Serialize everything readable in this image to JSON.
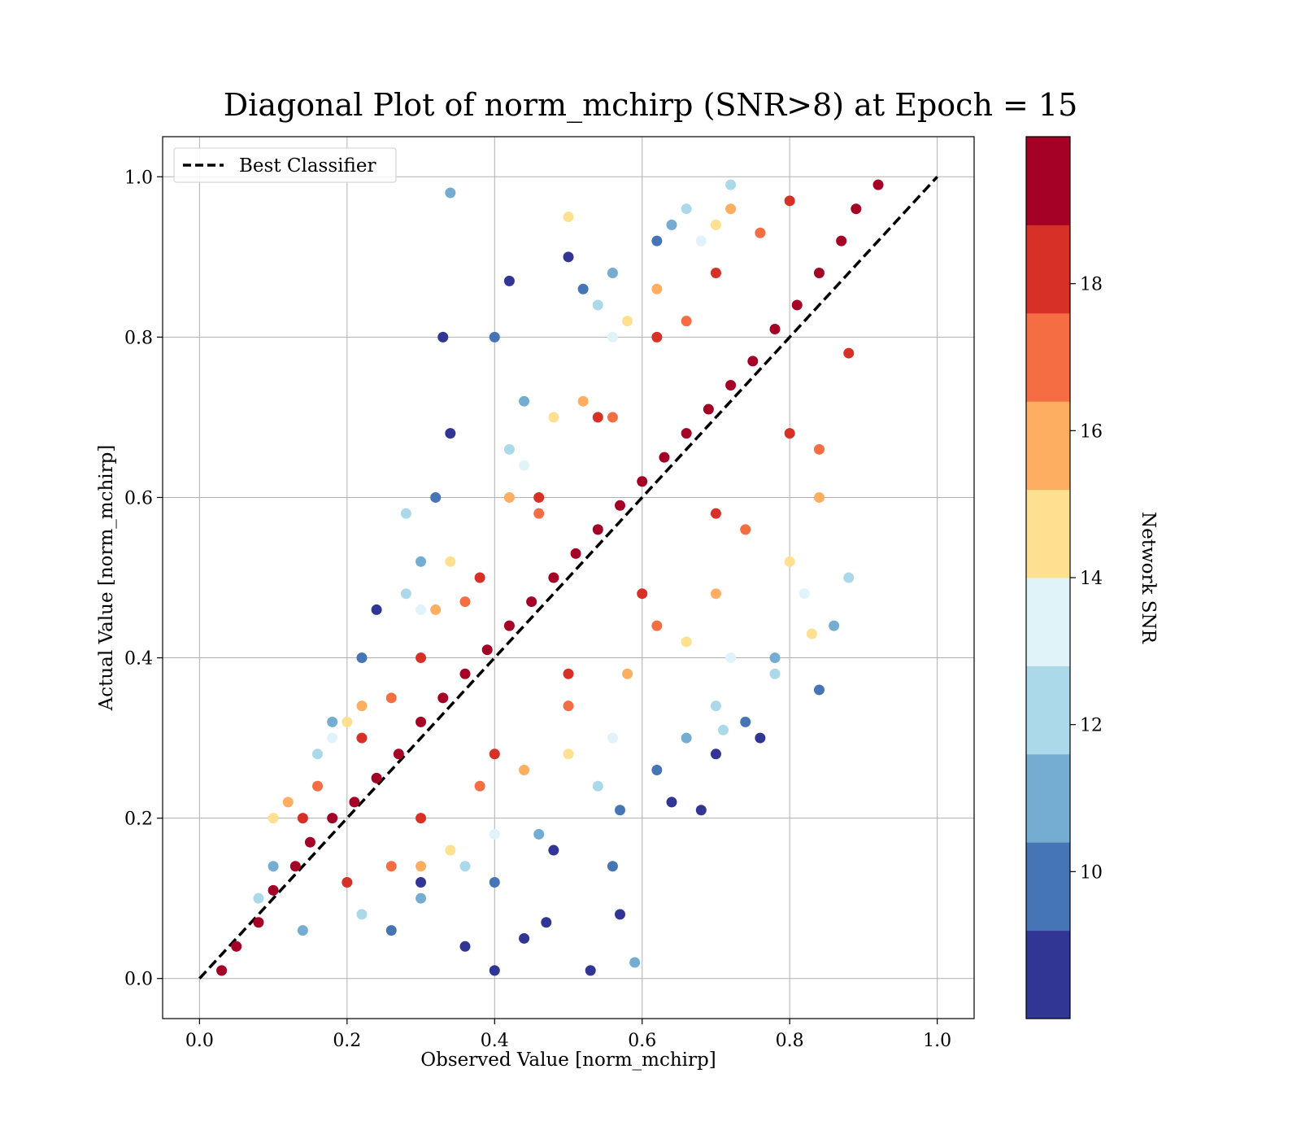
{
  "chart_data": {
    "type": "scatter",
    "title": "Diagonal Plot of norm_mchirp (SNR>8) at Epoch = 15",
    "xlabel": "Observed Value [norm_mchirp]",
    "ylabel": "Actual Value [norm_mchirp]",
    "xlim": [
      -0.05,
      1.05
    ],
    "ylim": [
      -0.05,
      1.05
    ],
    "xticks": [
      "0.0",
      "0.2",
      "0.4",
      "0.6",
      "0.8",
      "1.0"
    ],
    "yticks": [
      "0.0",
      "0.2",
      "0.4",
      "0.6",
      "0.8",
      "1.0"
    ],
    "grid": true,
    "legend": {
      "position": "top-left",
      "entries": [
        "Best Classifier"
      ]
    },
    "reference_line": {
      "name": "Best Classifier",
      "style": "dashed",
      "color": "#000000",
      "x": [
        0.0,
        1.0
      ],
      "y": [
        0.0,
        1.0
      ]
    },
    "colorbar": {
      "label": "Network SNR",
      "range": [
        8,
        20
      ],
      "ticks": [
        "10",
        "12",
        "14",
        "16",
        "18"
      ],
      "bins": [
        {
          "from": 8,
          "to": 9.2,
          "color": "#313695"
        },
        {
          "from": 9.2,
          "to": 10.4,
          "color": "#4575b4"
        },
        {
          "from": 10.4,
          "to": 11.6,
          "color": "#74add1"
        },
        {
          "from": 11.6,
          "to": 12.8,
          "color": "#abd9e9"
        },
        {
          "from": 12.8,
          "to": 14.0,
          "color": "#e0f3f8"
        },
        {
          "from": 14.0,
          "to": 15.2,
          "color": "#fee090"
        },
        {
          "from": 15.2,
          "to": 16.4,
          "color": "#fdae61"
        },
        {
          "from": 16.4,
          "to": 17.6,
          "color": "#f46d43"
        },
        {
          "from": 17.6,
          "to": 18.8,
          "color": "#d73027"
        },
        {
          "from": 18.8,
          "to": 20.0,
          "color": "#a50026"
        }
      ]
    },
    "points": [
      {
        "x": 0.03,
        "y": 0.01,
        "snr": 19.5
      },
      {
        "x": 0.05,
        "y": 0.04,
        "snr": 19.6
      },
      {
        "x": 0.08,
        "y": 0.07,
        "snr": 19.4
      },
      {
        "x": 0.1,
        "y": 0.11,
        "snr": 19.7
      },
      {
        "x": 0.13,
        "y": 0.14,
        "snr": 19.5
      },
      {
        "x": 0.15,
        "y": 0.17,
        "snr": 19.8
      },
      {
        "x": 0.18,
        "y": 0.2,
        "snr": 19.6
      },
      {
        "x": 0.21,
        "y": 0.22,
        "snr": 19.5
      },
      {
        "x": 0.24,
        "y": 0.25,
        "snr": 19.7
      },
      {
        "x": 0.27,
        "y": 0.28,
        "snr": 19.4
      },
      {
        "x": 0.3,
        "y": 0.32,
        "snr": 19.6
      },
      {
        "x": 0.33,
        "y": 0.35,
        "snr": 19.8
      },
      {
        "x": 0.36,
        "y": 0.38,
        "snr": 19.5
      },
      {
        "x": 0.39,
        "y": 0.41,
        "snr": 19.7
      },
      {
        "x": 0.42,
        "y": 0.44,
        "snr": 19.6
      },
      {
        "x": 0.45,
        "y": 0.47,
        "snr": 19.5
      },
      {
        "x": 0.48,
        "y": 0.5,
        "snr": 19.8
      },
      {
        "x": 0.51,
        "y": 0.53,
        "snr": 19.4
      },
      {
        "x": 0.54,
        "y": 0.56,
        "snr": 19.6
      },
      {
        "x": 0.57,
        "y": 0.59,
        "snr": 19.7
      },
      {
        "x": 0.6,
        "y": 0.62,
        "snr": 19.5
      },
      {
        "x": 0.63,
        "y": 0.65,
        "snr": 19.6
      },
      {
        "x": 0.66,
        "y": 0.68,
        "snr": 19.8
      },
      {
        "x": 0.69,
        "y": 0.71,
        "snr": 19.5
      },
      {
        "x": 0.72,
        "y": 0.74,
        "snr": 19.7
      },
      {
        "x": 0.75,
        "y": 0.77,
        "snr": 19.4
      },
      {
        "x": 0.78,
        "y": 0.81,
        "snr": 19.6
      },
      {
        "x": 0.81,
        "y": 0.84,
        "snr": 19.5
      },
      {
        "x": 0.84,
        "y": 0.88,
        "snr": 19.7
      },
      {
        "x": 0.87,
        "y": 0.92,
        "snr": 19.6
      },
      {
        "x": 0.89,
        "y": 0.96,
        "snr": 19.5
      },
      {
        "x": 0.92,
        "y": 0.99,
        "snr": 19.8
      },
      {
        "x": 0.14,
        "y": 0.2,
        "snr": 18.2
      },
      {
        "x": 0.22,
        "y": 0.3,
        "snr": 18.0
      },
      {
        "x": 0.3,
        "y": 0.4,
        "snr": 17.9
      },
      {
        "x": 0.38,
        "y": 0.5,
        "snr": 18.3
      },
      {
        "x": 0.46,
        "y": 0.6,
        "snr": 18.1
      },
      {
        "x": 0.54,
        "y": 0.7,
        "snr": 18.4
      },
      {
        "x": 0.62,
        "y": 0.8,
        "snr": 18.0
      },
      {
        "x": 0.7,
        "y": 0.88,
        "snr": 18.2
      },
      {
        "x": 0.8,
        "y": 0.97,
        "snr": 17.8
      },
      {
        "x": 0.2,
        "y": 0.12,
        "snr": 18.1
      },
      {
        "x": 0.3,
        "y": 0.2,
        "snr": 18.3
      },
      {
        "x": 0.4,
        "y": 0.28,
        "snr": 17.9
      },
      {
        "x": 0.5,
        "y": 0.38,
        "snr": 18.2
      },
      {
        "x": 0.6,
        "y": 0.48,
        "snr": 18.0
      },
      {
        "x": 0.7,
        "y": 0.58,
        "snr": 18.4
      },
      {
        "x": 0.8,
        "y": 0.68,
        "snr": 18.1
      },
      {
        "x": 0.88,
        "y": 0.78,
        "snr": 17.9
      },
      {
        "x": 0.16,
        "y": 0.24,
        "snr": 16.9
      },
      {
        "x": 0.26,
        "y": 0.35,
        "snr": 16.7
      },
      {
        "x": 0.36,
        "y": 0.47,
        "snr": 17.0
      },
      {
        "x": 0.46,
        "y": 0.58,
        "snr": 16.8
      },
      {
        "x": 0.56,
        "y": 0.7,
        "snr": 16.6
      },
      {
        "x": 0.66,
        "y": 0.82,
        "snr": 17.1
      },
      {
        "x": 0.76,
        "y": 0.93,
        "snr": 16.9
      },
      {
        "x": 0.26,
        "y": 0.14,
        "snr": 16.8
      },
      {
        "x": 0.38,
        "y": 0.24,
        "snr": 17.0
      },
      {
        "x": 0.5,
        "y": 0.34,
        "snr": 16.7
      },
      {
        "x": 0.62,
        "y": 0.44,
        "snr": 16.9
      },
      {
        "x": 0.74,
        "y": 0.56,
        "snr": 17.1
      },
      {
        "x": 0.84,
        "y": 0.66,
        "snr": 16.8
      },
      {
        "x": 0.12,
        "y": 0.22,
        "snr": 15.8
      },
      {
        "x": 0.22,
        "y": 0.34,
        "snr": 15.6
      },
      {
        "x": 0.32,
        "y": 0.46,
        "snr": 15.9
      },
      {
        "x": 0.42,
        "y": 0.6,
        "snr": 15.7
      },
      {
        "x": 0.52,
        "y": 0.72,
        "snr": 15.5
      },
      {
        "x": 0.62,
        "y": 0.86,
        "snr": 15.8
      },
      {
        "x": 0.72,
        "y": 0.96,
        "snr": 15.6
      },
      {
        "x": 0.3,
        "y": 0.14,
        "snr": 15.7
      },
      {
        "x": 0.44,
        "y": 0.26,
        "snr": 15.9
      },
      {
        "x": 0.58,
        "y": 0.38,
        "snr": 15.6
      },
      {
        "x": 0.7,
        "y": 0.48,
        "snr": 15.8
      },
      {
        "x": 0.84,
        "y": 0.6,
        "snr": 15.5
      },
      {
        "x": 0.1,
        "y": 0.2,
        "snr": 14.6
      },
      {
        "x": 0.2,
        "y": 0.32,
        "snr": 14.8
      },
      {
        "x": 0.34,
        "y": 0.52,
        "snr": 14.5
      },
      {
        "x": 0.48,
        "y": 0.7,
        "snr": 14.7
      },
      {
        "x": 0.58,
        "y": 0.82,
        "snr": 14.9
      },
      {
        "x": 0.7,
        "y": 0.94,
        "snr": 14.6
      },
      {
        "x": 0.5,
        "y": 0.95,
        "snr": 14.5
      },
      {
        "x": 0.34,
        "y": 0.16,
        "snr": 14.8
      },
      {
        "x": 0.5,
        "y": 0.28,
        "snr": 14.6
      },
      {
        "x": 0.66,
        "y": 0.42,
        "snr": 14.7
      },
      {
        "x": 0.8,
        "y": 0.52,
        "snr": 14.9
      },
      {
        "x": 0.83,
        "y": 0.43,
        "snr": 14.5
      },
      {
        "x": 0.18,
        "y": 0.3,
        "snr": 13.4
      },
      {
        "x": 0.3,
        "y": 0.46,
        "snr": 13.6
      },
      {
        "x": 0.44,
        "y": 0.64,
        "snr": 13.3
      },
      {
        "x": 0.56,
        "y": 0.8,
        "snr": 13.5
      },
      {
        "x": 0.68,
        "y": 0.92,
        "snr": 13.7
      },
      {
        "x": 0.4,
        "y": 0.18,
        "snr": 13.4
      },
      {
        "x": 0.56,
        "y": 0.3,
        "snr": 13.6
      },
      {
        "x": 0.72,
        "y": 0.4,
        "snr": 13.3
      },
      {
        "x": 0.82,
        "y": 0.48,
        "snr": 13.5
      },
      {
        "x": 0.08,
        "y": 0.1,
        "snr": 12.3
      },
      {
        "x": 0.16,
        "y": 0.28,
        "snr": 12.1
      },
      {
        "x": 0.28,
        "y": 0.48,
        "snr": 12.4
      },
      {
        "x": 0.42,
        "y": 0.66,
        "snr": 12.2
      },
      {
        "x": 0.54,
        "y": 0.84,
        "snr": 12.0
      },
      {
        "x": 0.66,
        "y": 0.96,
        "snr": 12.3
      },
      {
        "x": 0.72,
        "y": 0.99,
        "snr": 12.2
      },
      {
        "x": 0.28,
        "y": 0.58,
        "snr": 12.1
      },
      {
        "x": 0.22,
        "y": 0.08,
        "snr": 12.2
      },
      {
        "x": 0.36,
        "y": 0.14,
        "snr": 12.4
      },
      {
        "x": 0.54,
        "y": 0.24,
        "snr": 12.1
      },
      {
        "x": 0.7,
        "y": 0.34,
        "snr": 12.3
      },
      {
        "x": 0.78,
        "y": 0.38,
        "snr": 12.0
      },
      {
        "x": 0.88,
        "y": 0.5,
        "snr": 12.2
      },
      {
        "x": 0.71,
        "y": 0.31,
        "snr": 12.4
      },
      {
        "x": 0.1,
        "y": 0.14,
        "snr": 11.0
      },
      {
        "x": 0.18,
        "y": 0.32,
        "snr": 11.2
      },
      {
        "x": 0.3,
        "y": 0.52,
        "snr": 10.9
      },
      {
        "x": 0.34,
        "y": 0.98,
        "snr": 11.1
      },
      {
        "x": 0.44,
        "y": 0.72,
        "snr": 11.0
      },
      {
        "x": 0.56,
        "y": 0.88,
        "snr": 11.3
      },
      {
        "x": 0.64,
        "y": 0.94,
        "snr": 11.1
      },
      {
        "x": 0.14,
        "y": 0.06,
        "snr": 11.0
      },
      {
        "x": 0.3,
        "y": 0.1,
        "snr": 11.2
      },
      {
        "x": 0.46,
        "y": 0.18,
        "snr": 10.9
      },
      {
        "x": 0.59,
        "y": 0.02,
        "snr": 11.1
      },
      {
        "x": 0.66,
        "y": 0.3,
        "snr": 11.0
      },
      {
        "x": 0.78,
        "y": 0.4,
        "snr": 11.2
      },
      {
        "x": 0.86,
        "y": 0.44,
        "snr": 10.8
      },
      {
        "x": 0.22,
        "y": 0.4,
        "snr": 9.8
      },
      {
        "x": 0.32,
        "y": 0.6,
        "snr": 9.7
      },
      {
        "x": 0.4,
        "y": 0.8,
        "snr": 9.9
      },
      {
        "x": 0.52,
        "y": 0.86,
        "snr": 9.6
      },
      {
        "x": 0.62,
        "y": 0.92,
        "snr": 9.8
      },
      {
        "x": 0.26,
        "y": 0.06,
        "snr": 9.7
      },
      {
        "x": 0.4,
        "y": 0.12,
        "snr": 9.9
      },
      {
        "x": 0.56,
        "y": 0.14,
        "snr": 9.6
      },
      {
        "x": 0.62,
        "y": 0.26,
        "snr": 9.8
      },
      {
        "x": 0.74,
        "y": 0.32,
        "snr": 9.7
      },
      {
        "x": 0.84,
        "y": 0.36,
        "snr": 9.9
      },
      {
        "x": 0.57,
        "y": 0.21,
        "snr": 9.8
      },
      {
        "x": 0.34,
        "y": 0.68,
        "snr": 8.5
      },
      {
        "x": 0.33,
        "y": 0.8,
        "snr": 8.4
      },
      {
        "x": 0.42,
        "y": 0.87,
        "snr": 8.6
      },
      {
        "x": 0.5,
        "y": 0.9,
        "snr": 8.5
      },
      {
        "x": 0.24,
        "y": 0.46,
        "snr": 8.4
      },
      {
        "x": 0.4,
        "y": 0.01,
        "snr": 8.5
      },
      {
        "x": 0.47,
        "y": 0.07,
        "snr": 8.6
      },
      {
        "x": 0.53,
        "y": 0.01,
        "snr": 8.4
      },
      {
        "x": 0.57,
        "y": 0.08,
        "snr": 8.5
      },
      {
        "x": 0.48,
        "y": 0.16,
        "snr": 8.6
      },
      {
        "x": 0.64,
        "y": 0.22,
        "snr": 8.4
      },
      {
        "x": 0.68,
        "y": 0.21,
        "snr": 8.5
      },
      {
        "x": 0.7,
        "y": 0.28,
        "snr": 8.6
      },
      {
        "x": 0.76,
        "y": 0.3,
        "snr": 8.4
      },
      {
        "x": 0.36,
        "y": 0.04,
        "snr": 8.5
      },
      {
        "x": 0.3,
        "y": 0.12,
        "snr": 8.6
      },
      {
        "x": 0.44,
        "y": 0.05,
        "snr": 8.4
      }
    ]
  }
}
